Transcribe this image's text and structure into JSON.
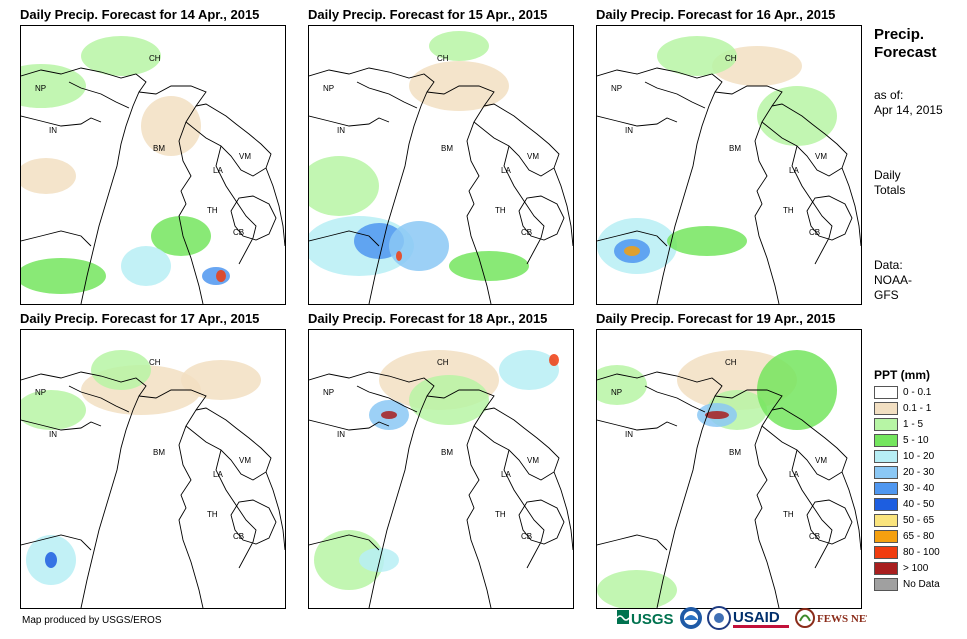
{
  "panels": [
    {
      "title": "Daily Precip. Forecast for 14 Apr., 2015"
    },
    {
      "title": "Daily Precip. Forecast for 15 Apr., 2015"
    },
    {
      "title": "Daily Precip. Forecast for 16 Apr., 2015"
    },
    {
      "title": "Daily Precip. Forecast for 17 Apr., 2015"
    },
    {
      "title": "Daily Precip. Forecast for 18 Apr., 2015"
    },
    {
      "title": "Daily Precip. Forecast for 19 Apr., 2015"
    }
  ],
  "country_labels": {
    "ch": "CH",
    "np": "NP",
    "in": "IN",
    "bm": "BM",
    "vm": "VM",
    "la": "LA",
    "th": "TH",
    "cb": "CB"
  },
  "side": {
    "title_line1": "Precip.",
    "title_line2": "Forecast",
    "asof_label": "as of:",
    "asof_date": "Apr 14, 2015",
    "totals_line1": "Daily",
    "totals_line2": "Totals",
    "data_line1": "Data:",
    "data_line2": "NOAA-",
    "data_line3": "GFS"
  },
  "legend": {
    "title": "PPT (mm)",
    "items": [
      {
        "range": "0 - 0.1",
        "color": "#ffffff"
      },
      {
        "range": "0.1 - 1",
        "color": "#f2dfc2"
      },
      {
        "range": "1 - 5",
        "color": "#b7f5a5"
      },
      {
        "range": "5 - 10",
        "color": "#74e55e"
      },
      {
        "range": "10 - 20",
        "color": "#b7eef5"
      },
      {
        "range": "20 - 30",
        "color": "#8bc8f5"
      },
      {
        "range": "30 - 40",
        "color": "#4f97f0"
      },
      {
        "range": "40 - 50",
        "color": "#1d5ee0"
      },
      {
        "range": "50 - 65",
        "color": "#fae47d"
      },
      {
        "range": "65 - 80",
        "color": "#f5a00f"
      },
      {
        "range": "80 - 100",
        "color": "#f03c0f"
      },
      {
        "range": "> 100",
        "color": "#a81e1e"
      },
      {
        "range": "No Data",
        "color": "#a0a0a0"
      }
    ]
  },
  "credit": "Map produced by USGS/EROS",
  "logos": {
    "usgs": "USGS",
    "usaid": "USAID",
    "fews": "FEWS NET"
  }
}
